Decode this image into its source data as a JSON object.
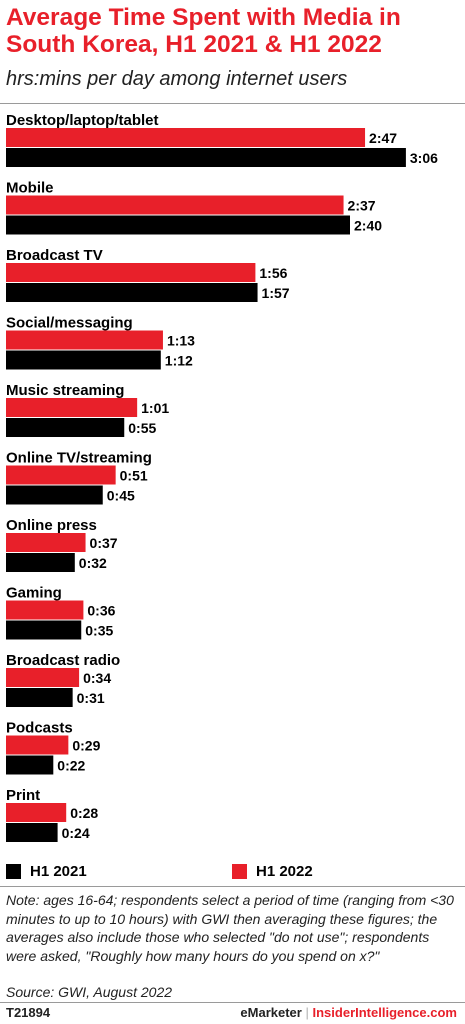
{
  "title": "Average Time Spent with Media in South Korea, H1 2021 & H1 2022",
  "subtitle": "hrs:mins per day among internet users",
  "legend": [
    {
      "label": "H1 2021",
      "color": "#000000"
    },
    {
      "label": "H1 2022",
      "color": "#e8202a"
    }
  ],
  "note": "Note: ages 16-64; respondents select a period of time (ranging from <30 minutes to up to 10 hours) with GWI then averaging these figures; the averages also include those who selected \"do not use\"; respondents were asked, \"Roughly how many hours do you spend on x?\"",
  "source": "Source:  GWI, August 2022",
  "chart_id": "T21894",
  "brand": {
    "emarketer": "eMarketer",
    "separator": "|",
    "insider": "InsiderIntelligence.com"
  },
  "chart_data": {
    "type": "bar",
    "orientation": "horizontal",
    "categories": [
      "Desktop/laptop/tablet",
      "Mobile",
      "Broadcast TV",
      "Social/messaging",
      "Music streaming",
      "Online TV/streaming",
      "Online press",
      "Gaming",
      "Broadcast radio",
      "Podcasts",
      "Print"
    ],
    "series": [
      {
        "name": "H1 2022",
        "color": "#e8202a",
        "values": [
          167,
          157,
          116,
          73,
          61,
          51,
          37,
          36,
          34,
          29,
          28
        ],
        "labels": [
          "2:47",
          "2:37",
          "1:56",
          "1:13",
          "1:01",
          "0:51",
          "0:37",
          "0:36",
          "0:34",
          "0:29",
          "0:28"
        ]
      },
      {
        "name": "H1 2021",
        "color": "#000000",
        "values": [
          186,
          160,
          117,
          72,
          55,
          45,
          32,
          35,
          31,
          22,
          24
        ],
        "labels": [
          "3:06",
          "2:40",
          "1:57",
          "1:12",
          "0:55",
          "0:45",
          "0:32",
          "0:35",
          "0:31",
          "0:22",
          "0:24"
        ]
      }
    ],
    "value_unit": "minutes per day",
    "legend_position": "bottom",
    "grid": false
  }
}
